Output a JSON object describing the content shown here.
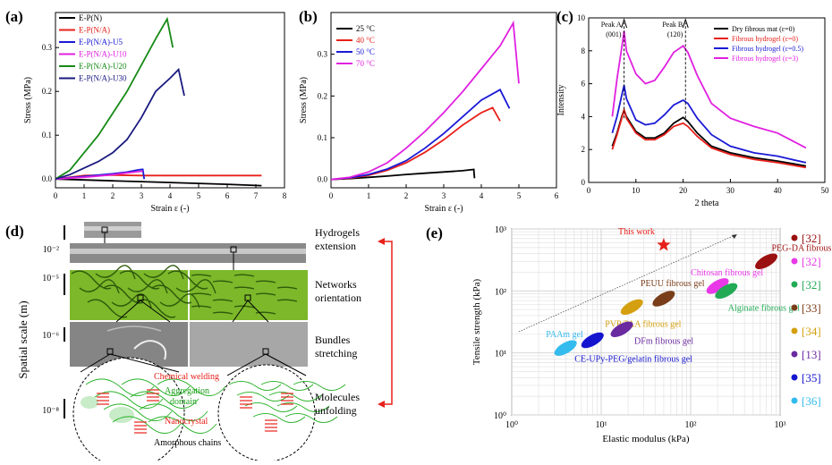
{
  "panels": {
    "a": {
      "label": "(a)"
    },
    "b": {
      "label": "(b)"
    },
    "c": {
      "label": "(c)"
    },
    "d": {
      "label": "(d)"
    },
    "e": {
      "label": "(e)"
    }
  },
  "chart_data": [
    {
      "id": "a",
      "type": "line",
      "xlabel": "Strain ε (-)",
      "ylabel": "Stress (MPa)",
      "xlim": [
        0,
        8
      ],
      "ylim": [
        -0.02,
        0.38
      ],
      "xticks": [
        "0",
        "1",
        "2",
        "3",
        "4",
        "5",
        "6",
        "7",
        "8"
      ],
      "yticks": [
        "0.0",
        "0.1",
        "0.2",
        "0.3"
      ],
      "legend_position": "top-left",
      "series": [
        {
          "name": "E-P(N)",
          "color": "#000000",
          "x": [
            0,
            1,
            2,
            3,
            4,
            5,
            6,
            7.2
          ],
          "y": [
            0,
            -0.002,
            -0.004,
            -0.006,
            -0.008,
            -0.01,
            -0.012,
            -0.015
          ]
        },
        {
          "name": "E-P(N/A)",
          "color": "#e8201a",
          "x": [
            0,
            1,
            2,
            3,
            4,
            5,
            6,
            7.2
          ],
          "y": [
            0,
            0.008,
            0.009,
            0.008,
            0.008,
            0.008,
            0.008,
            0.008
          ]
        },
        {
          "name": "E-P(N/A)-U5",
          "color": "#1a1ad6",
          "x": [
            0,
            0.5,
            1,
            1.5,
            2,
            2.5,
            2.9,
            3.05,
            3.1
          ],
          "y": [
            0,
            0.003,
            0.006,
            0.009,
            0.012,
            0.016,
            0.021,
            0.022,
            0
          ]
        },
        {
          "name": "E-P(N/A)-U10",
          "color": "#e020e0",
          "x": [
            0,
            0.5,
            1,
            1.5,
            2,
            2.5,
            2.9,
            3.05
          ],
          "y": [
            0,
            0.002,
            0.004,
            0.007,
            0.01,
            0.014,
            0.017,
            0.018
          ]
        },
        {
          "name": "E-P(N/A)-U20",
          "color": "#168a16",
          "x": [
            0,
            0.5,
            1,
            1.5,
            2,
            2.5,
            3,
            3.5,
            3.9,
            4.1
          ],
          "y": [
            0,
            0.02,
            0.06,
            0.1,
            0.15,
            0.2,
            0.26,
            0.32,
            0.365,
            0.3
          ]
        },
        {
          "name": "E-P(N/A)-U30",
          "color": "#1a1a80",
          "x": [
            0,
            0.5,
            1,
            1.5,
            2,
            2.5,
            3,
            3.5,
            4,
            4.3,
            4.5
          ],
          "y": [
            0,
            0.01,
            0.025,
            0.04,
            0.06,
            0.09,
            0.14,
            0.2,
            0.23,
            0.25,
            0.19
          ]
        }
      ]
    },
    {
      "id": "b",
      "type": "line",
      "xlabel": "Strain ε (-)",
      "ylabel": "Stress (MPa)",
      "xlim": [
        0,
        6
      ],
      "ylim": [
        -0.02,
        0.4
      ],
      "xticks": [
        "0",
        "1",
        "2",
        "3",
        "4",
        "5",
        "6"
      ],
      "yticks": [
        "0.0",
        "0.1",
        "0.2",
        "0.3"
      ],
      "legend_position": "top-left",
      "series": [
        {
          "name": "25 °C",
          "color": "#000000",
          "x": [
            0,
            0.5,
            1,
            1.5,
            2,
            2.5,
            3,
            3.5,
            3.8,
            3.82
          ],
          "y": [
            0,
            0.002,
            0.005,
            0.008,
            0.012,
            0.015,
            0.018,
            0.021,
            0.024,
            0.003
          ]
        },
        {
          "name": "40 °C",
          "color": "#e8201a",
          "x": [
            0,
            0.5,
            1,
            1.5,
            2,
            2.5,
            3,
            3.5,
            4,
            4.3,
            4.5
          ],
          "y": [
            0,
            0.003,
            0.01,
            0.022,
            0.04,
            0.065,
            0.095,
            0.13,
            0.16,
            0.172,
            0.14
          ]
        },
        {
          "name": "50 °C",
          "color": "#1a1ad6",
          "x": [
            0,
            0.5,
            1,
            1.5,
            2,
            2.5,
            3,
            3.5,
            4,
            4.5,
            4.75
          ],
          "y": [
            0,
            0.004,
            0.012,
            0.025,
            0.045,
            0.075,
            0.11,
            0.15,
            0.19,
            0.215,
            0.17
          ]
        },
        {
          "name": "70 °C",
          "color": "#e020e0",
          "x": [
            0,
            0.5,
            1,
            1.5,
            2,
            2.5,
            3,
            3.5,
            4,
            4.5,
            4.85,
            5.0
          ],
          "y": [
            0,
            0.005,
            0.018,
            0.04,
            0.075,
            0.115,
            0.16,
            0.21,
            0.265,
            0.32,
            0.375,
            0.23
          ]
        }
      ]
    },
    {
      "id": "c",
      "type": "line",
      "xlabel": "2 theta",
      "ylabel": "Intensity",
      "xlim": [
        0,
        50
      ],
      "ylim": [
        0,
        10
      ],
      "xticks": [
        "0",
        "10",
        "20",
        "30",
        "40",
        "50"
      ],
      "yticks": [
        "0",
        "2",
        "4",
        "6",
        "8",
        "10"
      ],
      "legend_position": "top-right",
      "annotations": [
        {
          "text": "Peak A",
          "x": 7.5
        },
        {
          "text": "(001)",
          "x": 7.5
        },
        {
          "text": "Peak B",
          "x": 20.5
        },
        {
          "text": "(120)",
          "x": 20.5
        }
      ],
      "series": [
        {
          "name": "Dry fibrous mat (ε=0)",
          "color": "#000000",
          "x": [
            5,
            6,
            7,
            7.5,
            8,
            10,
            12,
            14,
            16,
            18,
            20,
            21,
            23,
            26,
            30,
            35,
            40,
            46
          ],
          "y": [
            2.2,
            3.0,
            4.0,
            4.4,
            4.0,
            3.1,
            2.7,
            2.7,
            3.0,
            3.6,
            3.95,
            3.7,
            3.0,
            2.2,
            1.8,
            1.5,
            1.3,
            1.0
          ]
        },
        {
          "name": "Fibrous hydrogel (ε=0)",
          "color": "#e8201a",
          "x": [
            5,
            6,
            7,
            7.5,
            8,
            10,
            12,
            14,
            16,
            18,
            20,
            21,
            23,
            26,
            30,
            35,
            40,
            46
          ],
          "y": [
            2.0,
            2.9,
            3.9,
            4.4,
            3.9,
            3.0,
            2.6,
            2.6,
            2.9,
            3.4,
            3.6,
            3.4,
            2.8,
            2.1,
            1.7,
            1.4,
            1.2,
            0.9
          ]
        },
        {
          "name": "Fibrous hydrogel (ε=0.5)",
          "color": "#1a1ad6",
          "x": [
            5,
            6,
            7,
            7.5,
            8,
            10,
            12,
            14,
            16,
            18,
            20,
            21,
            23,
            26,
            30,
            35,
            40,
            46
          ],
          "y": [
            3.0,
            4.0,
            5.3,
            5.9,
            5.1,
            3.8,
            3.5,
            3.6,
            4.1,
            4.7,
            5.0,
            4.8,
            3.9,
            2.9,
            2.2,
            1.8,
            1.6,
            1.2
          ]
        },
        {
          "name": "Fibrous hydrogel (ε=3)",
          "color": "#e020e0",
          "x": [
            5,
            6,
            7,
            7.5,
            8,
            10,
            12,
            14,
            16,
            18,
            20,
            21,
            23,
            26,
            30,
            35,
            40,
            46
          ],
          "y": [
            4.0,
            6.3,
            8.2,
            9.2,
            8.0,
            6.6,
            6.0,
            6.2,
            7.0,
            7.9,
            8.3,
            7.9,
            6.5,
            4.8,
            3.9,
            3.4,
            3.0,
            2.1
          ]
        }
      ]
    },
    {
      "id": "e",
      "type": "scatter",
      "xlabel": "Elastic modulus (kPa)",
      "ylabel": "Tensile strength (kPa)",
      "xscale": "log",
      "yscale": "log",
      "xlim": [
        1,
        1000
      ],
      "ylim": [
        1,
        1000
      ],
      "xticks": [
        "10⁰",
        "10¹",
        "10²",
        "10³"
      ],
      "yticks": [
        "10⁰",
        "10¹",
        "10²",
        "10³"
      ],
      "points": [
        {
          "name": "This work",
          "x": 50,
          "y": 550,
          "color": "#e8201a",
          "ref": "",
          "marker": "star"
        },
        {
          "name": "PEG-DA fibrous gel",
          "x": 700,
          "y": 300,
          "color": "#9b1010",
          "ref": "[32]"
        },
        {
          "name": "Chitosan fibrous gel",
          "x": 200,
          "y": 120,
          "color": "#e838e8",
          "ref": "[32]"
        },
        {
          "name": "Alginate fibrous gel",
          "x": 250,
          "y": 100,
          "color": "#22aa55",
          "ref": "[32]"
        },
        {
          "name": "PEUU fibrous gel",
          "x": 50,
          "y": 75,
          "color": "#7a3d1a",
          "ref": "[33]"
        },
        {
          "name": "PVP/PAA fibrous gel",
          "x": 22,
          "y": 55,
          "color": "#d4a010",
          "ref": "[34]"
        },
        {
          "name": "DFm fibrous gel",
          "x": 17,
          "y": 24,
          "color": "#6a2aa0",
          "ref": "[13]"
        },
        {
          "name": "CE-UPy-PEG/gelatin fibrous gel",
          "x": 8,
          "y": 16,
          "color": "#1515d0",
          "ref": "[35]"
        },
        {
          "name": "PAAm gel",
          "x": 4,
          "y": 12,
          "color": "#33bbee",
          "ref": "[36]"
        }
      ],
      "legend_refs": [
        "[32]",
        "[32]",
        "[32]",
        "[33]",
        "[34]",
        "[13]",
        "[35]",
        "[36]"
      ]
    }
  ],
  "panel_d": {
    "ylabel": "Spatial scale (m)",
    "scale_labels": [
      "10⁻²",
      "10⁻⁵",
      "10⁻⁶",
      "10⁻⁸"
    ],
    "stage_labels": [
      [
        "Hydrogels",
        "extension"
      ],
      [
        "Networks",
        "orientation"
      ],
      [
        "Bundles",
        "stretching"
      ],
      [
        "Molecules",
        "unfolding"
      ]
    ],
    "callouts": {
      "chemical_welding": "Chemical welding",
      "aggregation_domain_1": "Aggregation",
      "aggregation_domain_2": "domain",
      "nanocrystal": "Nanocrystal",
      "amorphous_chains": "Amorphous chains"
    },
    "colors": {
      "callout_red": "#e8201a",
      "callout_green": "#18a018",
      "fiber": "#7cb82a"
    }
  }
}
